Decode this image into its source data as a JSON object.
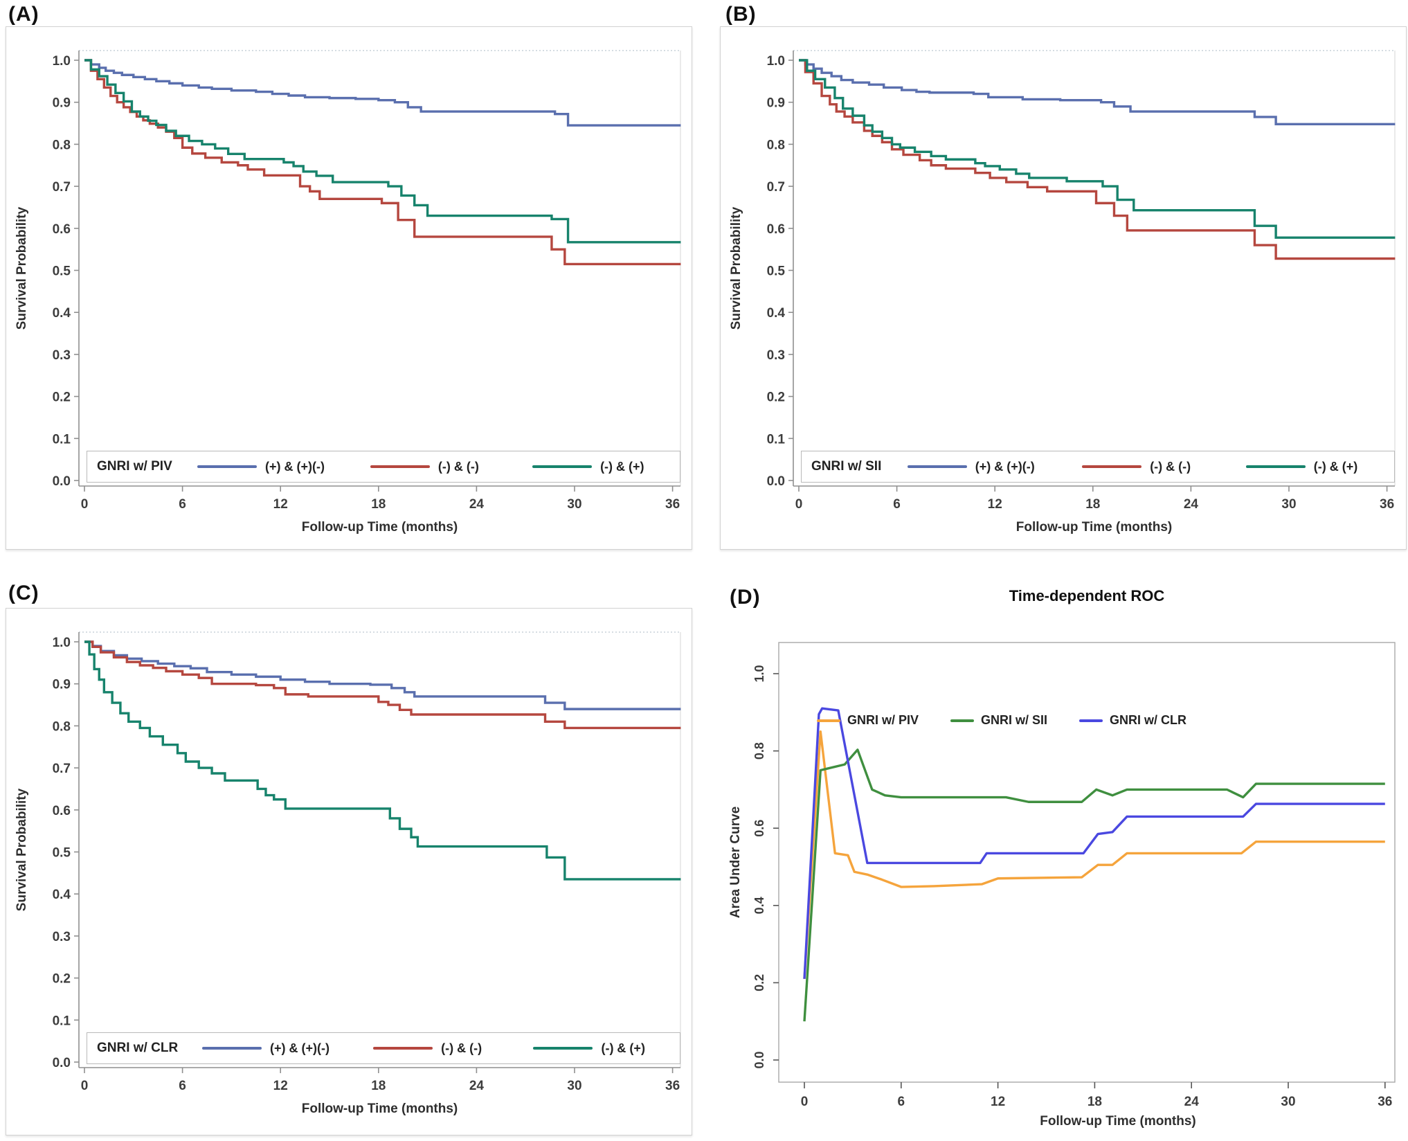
{
  "page": {
    "background": "#ffffff"
  },
  "chart_data": [
    {
      "id": "A",
      "type": "line",
      "subtype": "kaplan-meier-step",
      "panel_label": "(A)",
      "legend_title": "GNRI w/ PIV",
      "legend_position": "bottom-inside",
      "xlabel": "Follow-up Time (months)",
      "ylabel": "Survival Probability",
      "xlim": [
        0,
        36
      ],
      "ylim": [
        0.0,
        1.0
      ],
      "grid": false,
      "xticks": [
        0,
        6,
        12,
        18,
        24,
        30,
        36
      ],
      "yticks": [
        0.0,
        0.1,
        0.2,
        0.3,
        0.4,
        0.5,
        0.6,
        0.7,
        0.8,
        0.9,
        1.0
      ],
      "series": [
        {
          "name": "(+) & (+)(-)",
          "color": "#5a6fae",
          "x": [
            0,
            0.4,
            0.9,
            1.3,
            1.8,
            2.3,
            3.0,
            3.7,
            4.4,
            5.2,
            6.0,
            7.0,
            7.8,
            9.0,
            10.5,
            11.5,
            12.5,
            13.5,
            15.0,
            16.6,
            18.0,
            19.0,
            19.8,
            20.6,
            28.8,
            29.6,
            36.5
          ],
          "y": [
            1.0,
            0.99,
            0.982,
            0.975,
            0.97,
            0.965,
            0.96,
            0.955,
            0.95,
            0.945,
            0.94,
            0.935,
            0.932,
            0.928,
            0.925,
            0.92,
            0.916,
            0.912,
            0.91,
            0.908,
            0.905,
            0.9,
            0.888,
            0.878,
            0.872,
            0.845,
            0.845
          ]
        },
        {
          "name": "(-) & (-)",
          "color": "#b5473f",
          "x": [
            0,
            0.4,
            0.8,
            1.2,
            1.6,
            2.0,
            2.4,
            2.8,
            3.2,
            3.6,
            4.0,
            4.5,
            5.0,
            5.5,
            6.0,
            6.6,
            7.4,
            8.4,
            9.4,
            10.0,
            11.0,
            13.2,
            13.8,
            14.4,
            18.2,
            19.2,
            20.2,
            28.6,
            29.4,
            36.5
          ],
          "y": [
            1.0,
            0.975,
            0.955,
            0.935,
            0.915,
            0.9,
            0.888,
            0.877,
            0.866,
            0.857,
            0.849,
            0.84,
            0.83,
            0.815,
            0.792,
            0.778,
            0.768,
            0.757,
            0.75,
            0.74,
            0.726,
            0.7,
            0.688,
            0.67,
            0.66,
            0.62,
            0.58,
            0.55,
            0.515,
            0.515
          ]
        },
        {
          "name": "(-) & (+)",
          "color": "#17836c",
          "x": [
            0,
            0.4,
            0.9,
            1.4,
            1.9,
            2.4,
            2.9,
            3.4,
            3.9,
            4.4,
            5.0,
            5.6,
            6.4,
            7.2,
            8.0,
            8.8,
            9.8,
            12.2,
            12.8,
            13.4,
            14.2,
            15.2,
            18.6,
            19.4,
            20.2,
            21.0,
            28.6,
            29.6,
            36.5
          ],
          "y": [
            1.0,
            0.978,
            0.962,
            0.942,
            0.922,
            0.902,
            0.878,
            0.866,
            0.856,
            0.846,
            0.832,
            0.82,
            0.808,
            0.8,
            0.79,
            0.777,
            0.765,
            0.757,
            0.748,
            0.735,
            0.725,
            0.71,
            0.7,
            0.678,
            0.655,
            0.63,
            0.622,
            0.567,
            0.567
          ]
        }
      ]
    },
    {
      "id": "B",
      "type": "line",
      "subtype": "kaplan-meier-step",
      "panel_label": "(B)",
      "legend_title": "GNRI w/ SII",
      "legend_position": "bottom-inside",
      "xlabel": "Follow-up Time (months)",
      "ylabel": "Survival Probability",
      "xlim": [
        0,
        36
      ],
      "ylim": [
        0.0,
        1.0
      ],
      "grid": false,
      "xticks": [
        0,
        6,
        12,
        18,
        24,
        30,
        36
      ],
      "yticks": [
        0.0,
        0.1,
        0.2,
        0.3,
        0.4,
        0.5,
        0.6,
        0.7,
        0.8,
        0.9,
        1.0
      ],
      "series": [
        {
          "name": "(+) & (+)(-)",
          "color": "#5a6fae",
          "x": [
            0,
            0.4,
            0.9,
            1.4,
            2.0,
            2.6,
            3.3,
            4.3,
            5.2,
            6.3,
            7.2,
            8.0,
            10.7,
            11.6,
            13.7,
            16.0,
            18.5,
            19.3,
            20.3,
            27.9,
            29.2,
            36.5
          ],
          "y": [
            1.0,
            0.99,
            0.98,
            0.97,
            0.962,
            0.953,
            0.947,
            0.942,
            0.935,
            0.929,
            0.925,
            0.923,
            0.92,
            0.912,
            0.907,
            0.905,
            0.9,
            0.89,
            0.878,
            0.865,
            0.848,
            0.848
          ]
        },
        {
          "name": "(-) & (-)",
          "color": "#b5473f",
          "x": [
            0,
            0.4,
            0.9,
            1.4,
            1.9,
            2.3,
            2.8,
            3.3,
            4.0,
            4.5,
            5.1,
            5.7,
            6.4,
            7.4,
            8.1,
            9.0,
            10.8,
            11.7,
            12.7,
            14.0,
            15.2,
            18.2,
            19.3,
            20.1,
            27.9,
            29.2,
            36.5
          ],
          "y": [
            1.0,
            0.972,
            0.945,
            0.915,
            0.895,
            0.878,
            0.866,
            0.852,
            0.832,
            0.82,
            0.805,
            0.788,
            0.775,
            0.762,
            0.75,
            0.742,
            0.732,
            0.72,
            0.71,
            0.698,
            0.688,
            0.66,
            0.63,
            0.595,
            0.56,
            0.528,
            0.528
          ]
        },
        {
          "name": "(-) & (+)",
          "color": "#17836c",
          "x": [
            0,
            0.5,
            1.0,
            1.6,
            2.2,
            2.7,
            3.3,
            4.0,
            4.5,
            5.1,
            5.7,
            6.2,
            7.1,
            8.1,
            9.0,
            10.8,
            11.4,
            12.3,
            13.3,
            14.1,
            16.4,
            18.6,
            19.5,
            20.5,
            27.9,
            29.2,
            36.5
          ],
          "y": [
            1.0,
            0.975,
            0.955,
            0.935,
            0.91,
            0.885,
            0.868,
            0.845,
            0.83,
            0.815,
            0.8,
            0.792,
            0.782,
            0.772,
            0.764,
            0.755,
            0.748,
            0.74,
            0.73,
            0.72,
            0.712,
            0.7,
            0.668,
            0.643,
            0.606,
            0.578,
            0.578
          ]
        }
      ]
    },
    {
      "id": "C",
      "type": "line",
      "subtype": "kaplan-meier-step",
      "panel_label": "(C)",
      "legend_title": "GNRI w/ CLR",
      "legend_position": "bottom-inside",
      "xlabel": "Follow-up Time (months)",
      "ylabel": "Survival Probability",
      "xlim": [
        0,
        36
      ],
      "ylim": [
        0.0,
        1.0
      ],
      "grid": false,
      "xticks": [
        0,
        6,
        12,
        18,
        24,
        30,
        36
      ],
      "yticks": [
        0.0,
        0.1,
        0.2,
        0.3,
        0.4,
        0.5,
        0.6,
        0.7,
        0.8,
        0.9,
        1.0
      ],
      "series": [
        {
          "name": "(+) & (+)(-)",
          "color": "#5a6fae",
          "x": [
            0,
            0.5,
            1.0,
            1.8,
            2.6,
            3.5,
            4.5,
            5.5,
            6.5,
            7.5,
            9.0,
            10.5,
            12.0,
            13.5,
            15.0,
            17.5,
            18.8,
            19.6,
            20.2,
            28.2,
            29.4,
            36.5
          ],
          "y": [
            1.0,
            0.99,
            0.978,
            0.968,
            0.96,
            0.954,
            0.948,
            0.942,
            0.937,
            0.928,
            0.922,
            0.917,
            0.91,
            0.905,
            0.9,
            0.898,
            0.89,
            0.88,
            0.87,
            0.855,
            0.84,
            0.84
          ]
        },
        {
          "name": "(-) & (-)",
          "color": "#b5473f",
          "x": [
            0,
            0.5,
            1.0,
            1.8,
            2.6,
            3.4,
            4.2,
            5.0,
            6.0,
            7.0,
            7.8,
            10.5,
            11.6,
            12.3,
            13.7,
            18.0,
            18.6,
            19.3,
            20.0,
            28.2,
            29.4,
            36.5
          ],
          "y": [
            1.0,
            0.988,
            0.975,
            0.963,
            0.952,
            0.944,
            0.938,
            0.93,
            0.922,
            0.914,
            0.9,
            0.897,
            0.89,
            0.875,
            0.87,
            0.857,
            0.85,
            0.838,
            0.827,
            0.81,
            0.795,
            0.795
          ]
        },
        {
          "name": "(-) & (+)",
          "color": "#17836c",
          "x": [
            0,
            0.3,
            0.6,
            0.9,
            1.2,
            1.7,
            2.2,
            2.7,
            3.4,
            4.0,
            4.8,
            5.7,
            6.2,
            7.0,
            7.8,
            8.6,
            10.6,
            11.1,
            11.6,
            12.3,
            13.9,
            18.7,
            19.3,
            20.0,
            20.4,
            28.3,
            29.4,
            36.5
          ],
          "y": [
            1.0,
            0.97,
            0.935,
            0.91,
            0.88,
            0.855,
            0.83,
            0.81,
            0.795,
            0.775,
            0.755,
            0.735,
            0.715,
            0.7,
            0.687,
            0.67,
            0.65,
            0.635,
            0.625,
            0.603,
            0.603,
            0.58,
            0.555,
            0.535,
            0.513,
            0.487,
            0.435,
            0.435
          ]
        }
      ]
    },
    {
      "id": "D",
      "type": "line",
      "subtype": "time-dependent-auc",
      "panel_label": "(D)",
      "title": "Time-dependent ROC",
      "legend_position": "top-inside",
      "xlabel": "Follow-up Time (months)",
      "ylabel": "Area Under Curve",
      "xlim": [
        0,
        36
      ],
      "ylim": [
        0.0,
        1.1
      ],
      "grid": false,
      "xticks": [
        0,
        6,
        12,
        18,
        24,
        30,
        36
      ],
      "yticks": [
        0.0,
        0.2,
        0.4,
        0.6,
        0.8,
        1.0
      ],
      "series": [
        {
          "name": "GNRI w/ PIV",
          "color": "#f5a43c",
          "x": [
            0,
            1.0,
            1.9,
            2.7,
            3.1,
            3.9,
            4.8,
            6.0,
            8.0,
            11.0,
            12.0,
            17.2,
            18.2,
            19.1,
            20.0,
            27.1,
            28.0,
            36.0
          ],
          "y": [
            0.21,
            0.85,
            0.535,
            0.53,
            0.487,
            0.48,
            0.467,
            0.448,
            0.45,
            0.455,
            0.47,
            0.473,
            0.505,
            0.505,
            0.535,
            0.535,
            0.565,
            0.565
          ]
        },
        {
          "name": "GNRI w/ SII",
          "color": "#3f8f3f",
          "x": [
            0,
            1.0,
            1.5,
            2.5,
            3.3,
            4.2,
            5.0,
            6.0,
            12.5,
            13.9,
            17.2,
            18.1,
            19.1,
            20.0,
            26.2,
            27.2,
            28.0,
            36.0
          ],
          "y": [
            0.1,
            0.75,
            0.755,
            0.765,
            0.803,
            0.7,
            0.685,
            0.68,
            0.68,
            0.668,
            0.668,
            0.7,
            0.685,
            0.7,
            0.7,
            0.68,
            0.715,
            0.715
          ]
        },
        {
          "name": "GNRI w/ CLR",
          "color": "#4a48e0",
          "x": [
            0,
            0.9,
            1.1,
            2.1,
            3.9,
            5.0,
            10.9,
            11.3,
            17.3,
            18.2,
            19.1,
            20.0,
            27.2,
            28.0,
            36.0
          ],
          "y": [
            0.21,
            0.895,
            0.91,
            0.905,
            0.51,
            0.51,
            0.51,
            0.535,
            0.535,
            0.585,
            0.59,
            0.63,
            0.63,
            0.663,
            0.663
          ]
        }
      ]
    }
  ]
}
